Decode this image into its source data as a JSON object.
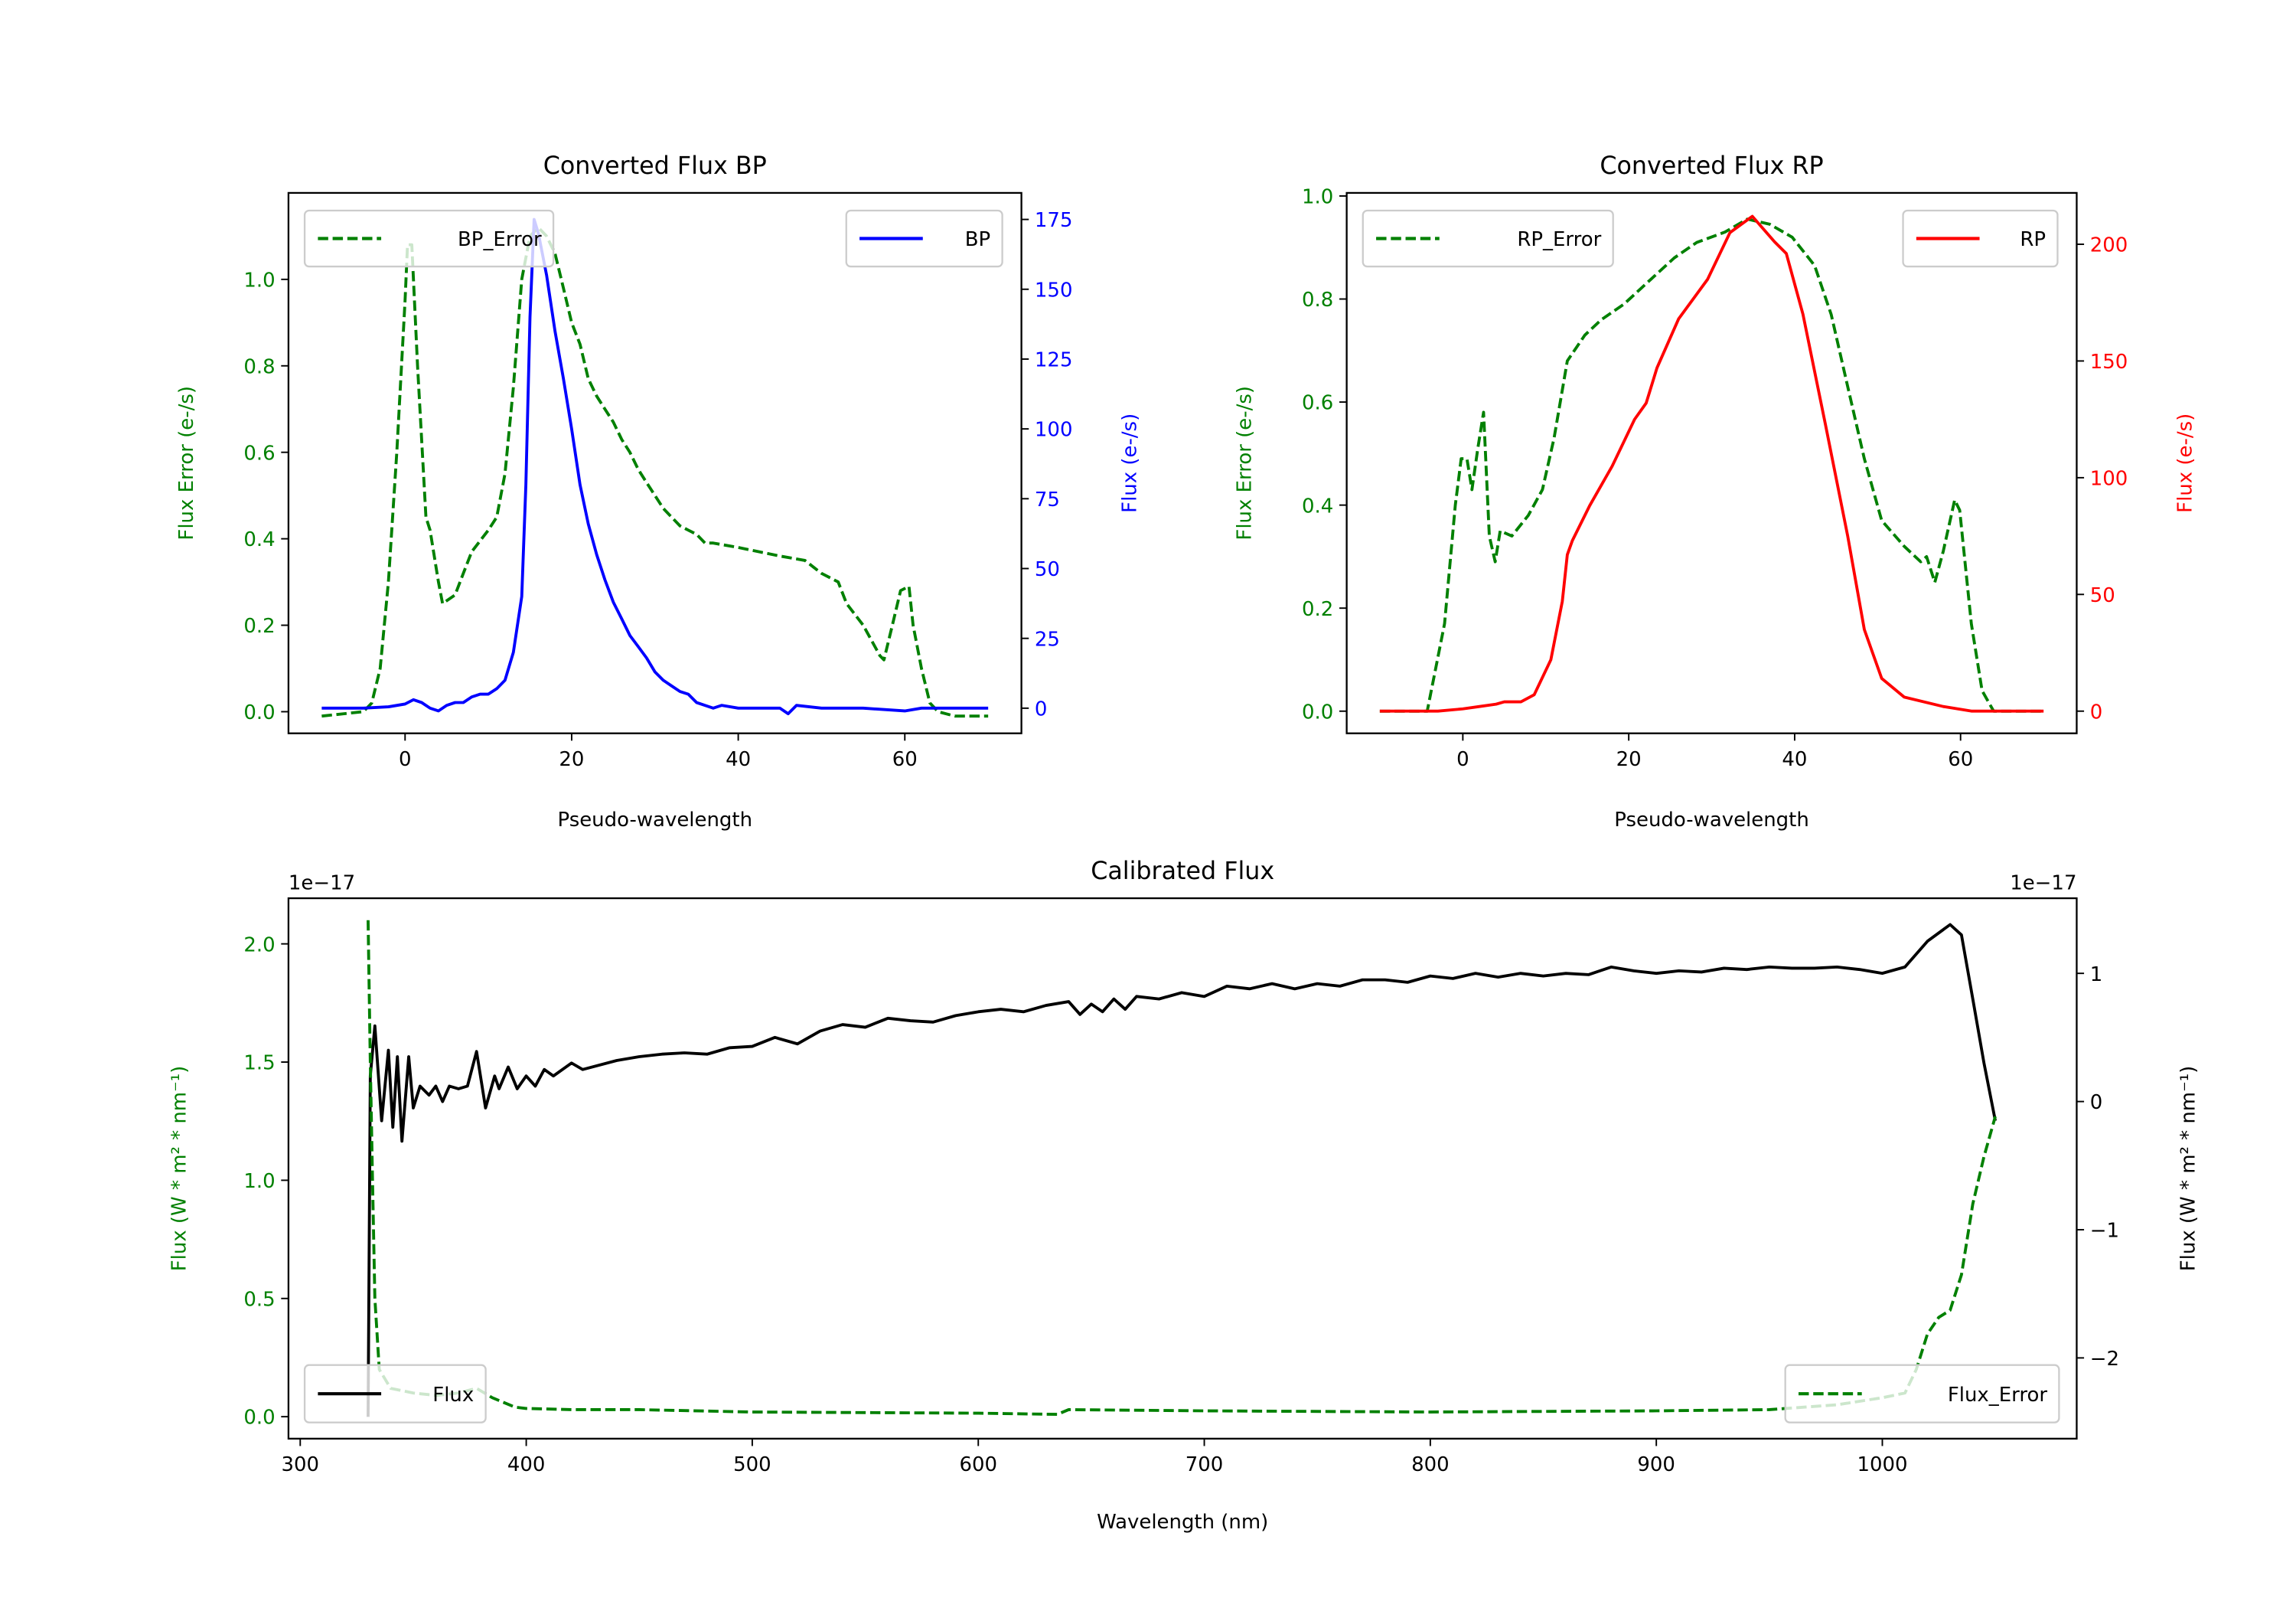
{
  "colors": {
    "green": "#008000",
    "blue": "#0000ff",
    "red": "#ff0000",
    "black": "#000000"
  },
  "chart_data": [
    {
      "type": "line",
      "title": "Converted Flux BP",
      "xlabel": "Pseudo-wavelength",
      "ylabel_left": "Flux Error (e-/s)",
      "ylabel_right": "Flux (e-/s)",
      "xlim": [
        -14,
        74
      ],
      "ylim_left": [
        -0.05,
        1.2
      ],
      "ylim_right": [
        -9,
        184.5
      ],
      "xticks": [
        0,
        20,
        40,
        60
      ],
      "xtick_labels": [
        "0",
        "20",
        "40",
        "60"
      ],
      "yticks_left": [
        0,
        0.2,
        0.4,
        0.6,
        0.8,
        1.0
      ],
      "ytick_labels_left": [
        "0.0",
        "0.2",
        "0.4",
        "0.6",
        "0.8",
        "1.0"
      ],
      "yticks_right": [
        0,
        25,
        50,
        75,
        100,
        125,
        150,
        175
      ],
      "ytick_labels_right": [
        "0",
        "25",
        "50",
        "75",
        "100",
        "125",
        "150",
        "175"
      ],
      "left_color": "#008000",
      "right_color": "#0000ff",
      "series": [
        {
          "name": "BP_Error",
          "axis": "left",
          "style": "dashed",
          "color": "#008000",
          "legend": "top-left",
          "x": [
            -10,
            -5,
            -4,
            -3,
            -2,
            -1,
            0,
            0.3,
            0.8,
            1.5,
            2.5,
            3,
            4,
            4.5,
            6,
            7,
            8,
            10,
            11,
            12,
            13,
            14,
            15,
            16,
            17,
            18,
            19,
            20,
            21,
            22,
            23,
            24,
            25,
            26,
            27,
            28,
            29,
            30,
            31,
            32,
            33,
            34,
            35,
            36,
            37,
            40,
            45,
            48,
            50,
            52,
            53,
            55,
            57,
            57.5,
            58.5,
            59.5,
            60.5,
            61,
            62,
            63,
            64,
            66,
            70
          ],
          "y": [
            -0.01,
            0,
            0.02,
            0.1,
            0.3,
            0.6,
            0.95,
            1.08,
            1.08,
            0.8,
            0.45,
            0.42,
            0.3,
            0.25,
            0.27,
            0.32,
            0.37,
            0.42,
            0.45,
            0.55,
            0.75,
            1.0,
            1.1,
            1.12,
            1.1,
            1.06,
            0.98,
            0.9,
            0.85,
            0.77,
            0.73,
            0.7,
            0.67,
            0.63,
            0.6,
            0.56,
            0.53,
            0.5,
            0.47,
            0.45,
            0.43,
            0.42,
            0.41,
            0.39,
            0.39,
            0.38,
            0.36,
            0.35,
            0.32,
            0.3,
            0.25,
            0.2,
            0.13,
            0.12,
            0.2,
            0.28,
            0.29,
            0.2,
            0.1,
            0.02,
            0,
            -0.01,
            -0.01
          ]
        },
        {
          "name": "BP",
          "axis": "right",
          "style": "solid",
          "color": "#0000ff",
          "legend": "top-right",
          "x": [
            -10,
            -5,
            -2,
            0,
            1,
            2,
            3,
            4,
            5,
            6,
            7,
            8,
            9,
            10,
            11,
            12,
            13,
            14,
            14.5,
            15,
            15.5,
            16,
            17,
            18,
            19,
            20,
            21,
            22,
            23,
            24,
            25,
            26,
            27,
            28,
            29,
            30,
            31,
            32,
            33,
            34,
            35,
            36,
            37,
            38,
            40,
            45,
            46,
            47,
            50,
            55,
            60,
            62,
            70
          ],
          "y": [
            0,
            0,
            0.5,
            1.5,
            3,
            2,
            0,
            -1,
            1,
            2,
            2,
            4,
            5,
            5,
            7,
            10,
            20,
            40,
            80,
            140,
            175,
            170,
            155,
            135,
            118,
            100,
            80,
            66,
            55,
            46,
            38,
            32,
            26,
            22,
            18,
            13,
            10,
            8,
            6,
            5,
            2,
            1,
            0,
            1,
            0,
            0,
            -2,
            1,
            0,
            0,
            -1,
            0,
            0
          ]
        }
      ]
    },
    {
      "type": "line",
      "title": "Converted Flux RP",
      "xlabel": "Pseudo-wavelength",
      "ylabel_left": "Flux Error (e-/s)",
      "ylabel_right": "Flux (e-/s)",
      "xlim": [
        -14,
        74
      ],
      "ylim_left": [
        -0.043,
        1.006
      ],
      "ylim_right": [
        -9.5,
        222
      ],
      "xticks": [
        0,
        20,
        40,
        60
      ],
      "xtick_labels": [
        "0",
        "20",
        "40",
        "60"
      ],
      "yticks_left": [
        0,
        0.2,
        0.4,
        0.6,
        0.8,
        1.0
      ],
      "ytick_labels_left": [
        "0.0",
        "0.2",
        "0.4",
        "0.6",
        "0.8",
        "1.0"
      ],
      "yticks_right": [
        0,
        50,
        100,
        150,
        200
      ],
      "ytick_labels_right": [
        "0",
        "50",
        "100",
        "150",
        "200"
      ],
      "left_color": "#008000",
      "right_color": "#ff0000",
      "series": [
        {
          "name": "RP_Error",
          "axis": "left",
          "style": "dashed",
          "color": "#008000",
          "legend": "top-left",
          "x": [
            -10,
            -4.3,
            -2.2,
            -0.9,
            -0.2,
            0.5,
            1.1,
            1.8,
            2.5,
            3.2,
            3.9,
            4.5,
            5.9,
            7.9,
            9.6,
            11,
            12.6,
            14.7,
            16.7,
            19.4,
            22.1,
            25.5,
            28.2,
            31.6,
            34.3,
            37,
            39.7,
            42.4,
            44.4,
            46.4,
            48.4,
            50.5,
            53.2,
            55.2,
            55.9,
            56.9,
            57.9,
            59.3,
            59.9,
            61.3,
            62.6,
            64,
            70
          ],
          "y": [
            0,
            0,
            0.17,
            0.4,
            0.49,
            0.49,
            0.43,
            0.51,
            0.58,
            0.34,
            0.29,
            0.35,
            0.34,
            0.38,
            0.43,
            0.53,
            0.68,
            0.73,
            0.76,
            0.79,
            0.83,
            0.88,
            0.91,
            0.93,
            0.955,
            0.945,
            0.92,
            0.865,
            0.77,
            0.63,
            0.49,
            0.37,
            0.32,
            0.29,
            0.3,
            0.25,
            0.31,
            0.41,
            0.39,
            0.17,
            0.04,
            0,
            0
          ]
        },
        {
          "name": "RP",
          "axis": "right",
          "style": "solid",
          "color": "#ff0000",
          "legend": "top-right",
          "x": [
            -10,
            -3,
            0,
            2,
            4,
            5,
            7,
            8.6,
            10.6,
            12,
            12.6,
            13.2,
            15.3,
            18,
            20.7,
            22.1,
            23.4,
            26,
            29.5,
            32.2,
            34.9,
            37.6,
            39,
            41,
            43.7,
            46.4,
            48.4,
            50.5,
            53.2,
            57.9,
            61.3,
            70
          ],
          "y": [
            0,
            0,
            1,
            2,
            3,
            4,
            4,
            7,
            22,
            47,
            67,
            73,
            88,
            105,
            125,
            132,
            147,
            168,
            185,
            205,
            212,
            201,
            196,
            170,
            123,
            75,
            35,
            14,
            6,
            2,
            0,
            0
          ]
        }
      ]
    },
    {
      "type": "line",
      "title": "Calibrated Flux",
      "xlabel": "Wavelength (nm)",
      "ylabel_left": "Flux (W * m² * nm⁻¹)",
      "ylabel_right": "Flux (W * m² * nm⁻¹)",
      "offset_left": "1e−17",
      "offset_right": "1e−17",
      "xlim": [
        294.8,
        1086
      ],
      "ylim_left": [
        -0.093,
        2.193
      ],
      "ylim_right": [
        -2.63,
        1.586
      ],
      "xticks": [
        300,
        400,
        500,
        600,
        700,
        800,
        900,
        1000
      ],
      "xtick_labels": [
        "300",
        "400",
        "500",
        "600",
        "700",
        "800",
        "900",
        "1000"
      ],
      "yticks_left": [
        0,
        0.5,
        1.0,
        1.5,
        2.0
      ],
      "ytick_labels_left": [
        "0.0",
        "0.5",
        "1.0",
        "1.5",
        "2.0"
      ],
      "yticks_right": [
        -2,
        -1,
        0,
        1
      ],
      "ytick_labels_right": [
        "−2",
        "−1",
        "0",
        "1"
      ],
      "left_color": "#008000",
      "right_color": "#000000",
      "series": [
        {
          "name": "Flux",
          "axis": "right",
          "style": "solid",
          "color": "#000000",
          "legend": "bottom-left",
          "x": [
            330,
            331,
            333,
            336,
            339,
            341,
            343,
            345,
            348,
            350,
            353,
            357,
            360,
            363,
            366,
            370,
            374,
            378,
            382,
            386,
            388,
            392,
            396,
            400,
            404,
            408,
            412,
            420,
            425,
            440,
            450,
            460,
            470,
            480,
            490,
            500,
            510,
            520,
            530,
            540,
            550,
            560,
            570,
            580,
            590,
            600,
            610,
            620,
            630,
            640,
            645,
            650,
            655,
            660,
            665,
            670,
            680,
            690,
            700,
            710,
            720,
            730,
            740,
            750,
            760,
            770,
            780,
            790,
            800,
            810,
            820,
            830,
            840,
            850,
            860,
            870,
            880,
            890,
            900,
            910,
            920,
            930,
            940,
            950,
            960,
            970,
            980,
            990,
            1000,
            1010,
            1020,
            1030,
            1035,
            1040,
            1045,
            1050
          ],
          "y": [
            -2.46,
            0.2,
            0.59,
            -0.15,
            0.4,
            -0.2,
            0.35,
            -0.31,
            0.35,
            -0.05,
            0.12,
            0.05,
            0.12,
            0.0,
            0.12,
            0.1,
            0.12,
            0.39,
            -0.05,
            0.2,
            0.1,
            0.27,
            0.1,
            0.2,
            0.12,
            0.25,
            0.2,
            0.3,
            0.25,
            0.32,
            0.35,
            0.37,
            0.38,
            0.37,
            0.42,
            0.43,
            0.5,
            0.45,
            0.55,
            0.6,
            0.58,
            0.65,
            0.63,
            0.62,
            0.67,
            0.7,
            0.72,
            0.7,
            0.75,
            0.78,
            0.68,
            0.76,
            0.7,
            0.8,
            0.72,
            0.82,
            0.8,
            0.85,
            0.82,
            0.9,
            0.88,
            0.92,
            0.88,
            0.92,
            0.9,
            0.95,
            0.95,
            0.93,
            0.98,
            0.96,
            1.0,
            0.97,
            1.0,
            0.98,
            1.0,
            0.99,
            1.05,
            1.02,
            1.0,
            1.02,
            1.01,
            1.04,
            1.03,
            1.05,
            1.04,
            1.04,
            1.05,
            1.03,
            1.0,
            1.05,
            1.25,
            1.38,
            1.3,
            0.8,
            0.3,
            -0.15
          ]
        },
        {
          "name": "Flux_Error",
          "axis": "left",
          "style": "dashed",
          "color": "#008000",
          "legend": "bottom-right",
          "x": [
            330,
            331,
            332,
            333,
            335,
            340,
            350,
            360,
            370,
            378,
            385,
            395,
            400,
            420,
            450,
            500,
            600,
            635,
            640,
            700,
            800,
            900,
            950,
            980,
            1000,
            1010,
            1015,
            1020,
            1025,
            1030,
            1035,
            1040,
            1045,
            1050
          ],
          "y": [
            2.1,
            1.5,
            1.0,
            0.5,
            0.2,
            0.12,
            0.1,
            0.09,
            0.1,
            0.12,
            0.08,
            0.04,
            0.035,
            0.03,
            0.03,
            0.02,
            0.015,
            0.01,
            0.03,
            0.025,
            0.02,
            0.025,
            0.03,
            0.05,
            0.08,
            0.1,
            0.2,
            0.35,
            0.42,
            0.45,
            0.6,
            0.9,
            1.1,
            1.27
          ]
        }
      ]
    }
  ]
}
